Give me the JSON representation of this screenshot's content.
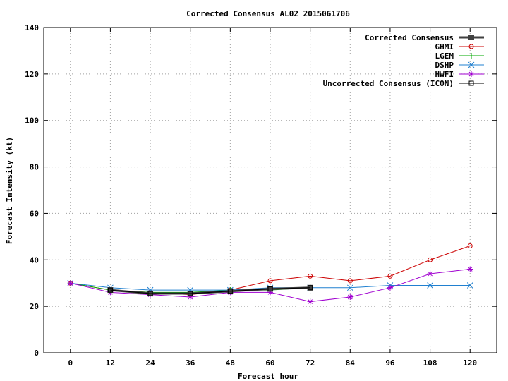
{
  "chart_data": {
    "type": "line",
    "title": "Corrected Consensus  AL02 2015061706",
    "xlabel": "Forecast hour",
    "ylabel": "Forecast Intensity (kt)",
    "xlim": [
      -8,
      128
    ],
    "ylim": [
      0,
      140
    ],
    "xticks": [
      0,
      12,
      24,
      36,
      48,
      60,
      72,
      84,
      96,
      108,
      120
    ],
    "yticks": [
      0,
      20,
      40,
      60,
      80,
      100,
      120,
      140
    ],
    "grid": true,
    "legend_position": "top-right",
    "series": [
      {
        "name": "Corrected Consensus",
        "color": "#404040",
        "marker": "filled-square",
        "line_width": 3,
        "x": [
          12,
          24,
          36,
          48,
          60,
          72
        ],
        "y": [
          27,
          25.5,
          25.5,
          26.5,
          27.5,
          28
        ]
      },
      {
        "name": "GHMI",
        "color": "#cc0000",
        "marker": "circle",
        "line_width": 1,
        "x": [
          0,
          12,
          24,
          36,
          48,
          60,
          72,
          84,
          96,
          108,
          120
        ],
        "y": [
          30,
          27,
          26,
          25,
          27,
          31,
          33,
          31,
          33,
          40,
          46
        ]
      },
      {
        "name": "LGEM",
        "color": "#00aa00",
        "marker": "plus",
        "line_width": 1,
        "x": [
          0,
          12,
          24,
          36,
          48,
          60,
          72
        ],
        "y": [
          30,
          27,
          26,
          26,
          27,
          27,
          28
        ]
      },
      {
        "name": "DSHP",
        "color": "#2080d0",
        "marker": "cross",
        "line_width": 1,
        "x": [
          0,
          12,
          24,
          36,
          48,
          60,
          72,
          84,
          96,
          108,
          120
        ],
        "y": [
          30,
          28,
          27,
          27,
          27,
          28,
          28,
          28,
          29,
          29,
          29
        ]
      },
      {
        "name": "HWFI",
        "color": "#a000d0",
        "marker": "star",
        "line_width": 1,
        "x": [
          0,
          12,
          24,
          36,
          48,
          60,
          72,
          84,
          96,
          108,
          120
        ],
        "y": [
          30,
          26,
          25,
          24,
          26,
          26,
          22,
          24,
          28,
          34,
          36
        ]
      },
      {
        "name": "Uncorrected Consensus (ICON)",
        "color": "#000000",
        "marker": "open-square",
        "line_width": 1,
        "x": [
          12,
          24,
          36,
          48,
          60,
          72
        ],
        "y": [
          27,
          25.5,
          25.5,
          26.5,
          27.5,
          28
        ]
      }
    ]
  }
}
